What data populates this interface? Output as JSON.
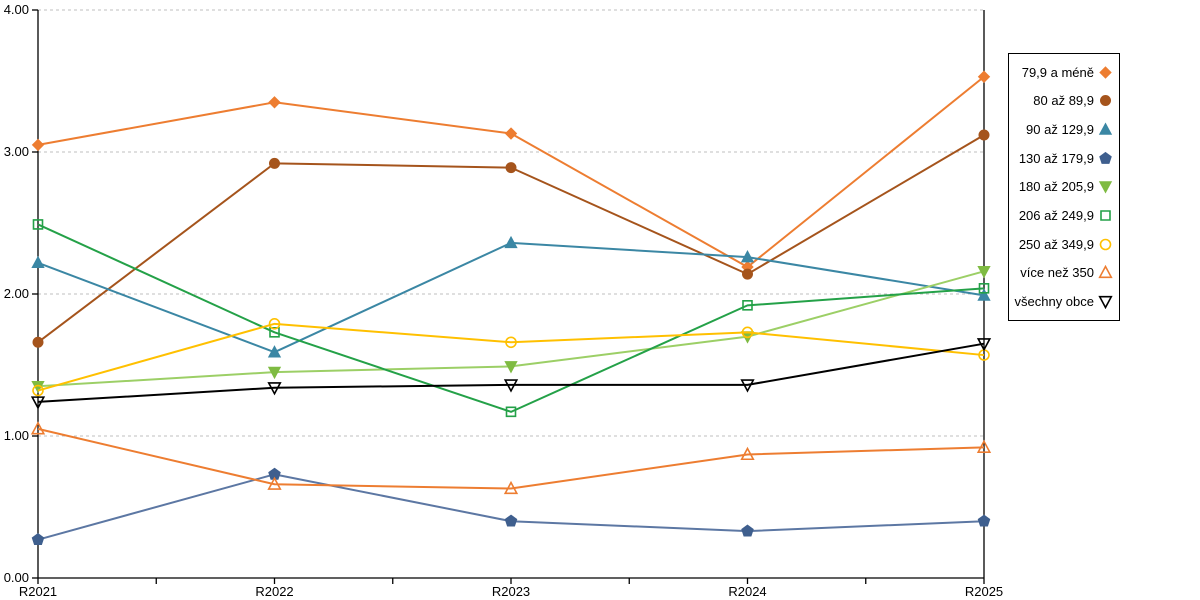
{
  "chart_data": {
    "type": "line",
    "title": "",
    "xlabel": "",
    "ylabel": "",
    "categories": [
      "R2021",
      "R2022",
      "R2023",
      "R2024",
      "R2025"
    ],
    "series": [
      {
        "name": "79,9 a méně",
        "marker": "diamond",
        "filled": true,
        "color": "#ED7D31",
        "values": [
          3.05,
          3.35,
          3.13,
          2.19,
          3.53
        ]
      },
      {
        "name": "80 až 89,9",
        "marker": "circle",
        "filled": true,
        "color": "#A5541C",
        "values": [
          1.66,
          2.92,
          2.89,
          2.14,
          3.12
        ]
      },
      {
        "name": "90 až 129,9",
        "marker": "triangle-up",
        "filled": true,
        "color": "#3B87A4",
        "values": [
          2.22,
          1.59,
          2.36,
          2.26,
          1.99
        ]
      },
      {
        "name": "130 až 179,9",
        "marker": "pentagon",
        "filled": true,
        "color": "#3F5F8E",
        "lineColor": "#5C77A3",
        "values": [
          0.27,
          0.73,
          0.4,
          0.33,
          0.4
        ]
      },
      {
        "name": "180 až 205,9",
        "marker": "triangle-down",
        "filled": true,
        "color": "#7FBB42",
        "lineColor": "#9CCF66",
        "values": [
          1.35,
          1.45,
          1.49,
          1.7,
          2.16
        ]
      },
      {
        "name": "206 až 249,9",
        "marker": "square",
        "filled": false,
        "color": "#24A148",
        "values": [
          2.49,
          1.73,
          1.17,
          1.92,
          2.04
        ]
      },
      {
        "name": "250 až 349,9",
        "marker": "circle",
        "filled": false,
        "color": "#FFC000",
        "values": [
          1.32,
          1.79,
          1.66,
          1.73,
          1.57
        ]
      },
      {
        "name": "více než 350",
        "marker": "triangle-up",
        "filled": false,
        "color": "#ED7D31",
        "values": [
          1.05,
          0.66,
          0.63,
          0.87,
          0.92
        ]
      },
      {
        "name": "všechny obce",
        "marker": "triangle-down",
        "filled": false,
        "color": "#000000",
        "values": [
          1.24,
          1.34,
          1.36,
          1.36,
          1.65
        ]
      }
    ],
    "ylim": [
      0,
      4
    ],
    "ytick_labels": [
      "0.00",
      "1.00",
      "2.00",
      "3.00",
      "4.00"
    ],
    "grid": "horizontal-dashed",
    "legend_position": "right"
  },
  "colors": {
    "background": "#FFFFFF",
    "grid": "#BFBFBF",
    "axis": "#000000",
    "tick_text": "#000000"
  }
}
